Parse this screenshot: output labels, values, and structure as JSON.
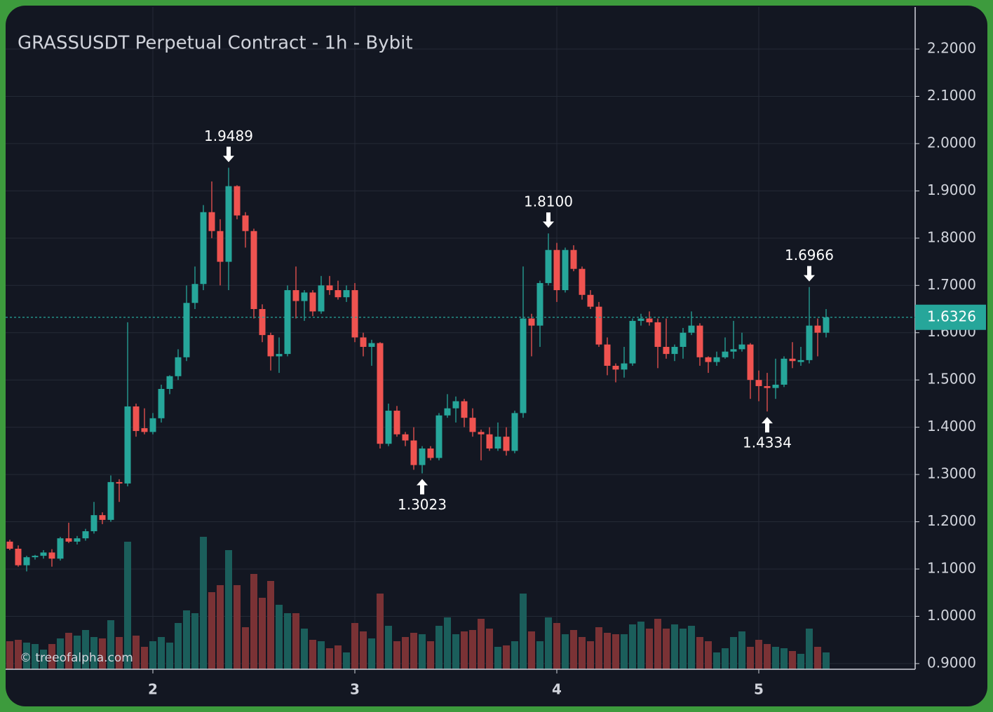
{
  "chart_data": {
    "type": "candlestick",
    "title": "GRASSUSDT Perpetual Contract - 1h - Bybit",
    "watermark": "© treeofalpha.com",
    "categories": [
      null,
      null,
      null,
      null,
      null,
      null,
      null,
      null,
      null,
      null,
      null,
      null,
      null,
      null,
      null,
      null,
      null,
      "2",
      null,
      null,
      null,
      null,
      null,
      null,
      null,
      null,
      null,
      null,
      null,
      null,
      null,
      null,
      null,
      null,
      null,
      null,
      null,
      null,
      null,
      null,
      null,
      "3",
      null,
      null,
      null,
      null,
      null,
      null,
      null,
      null,
      null,
      null,
      null,
      null,
      null,
      null,
      null,
      null,
      null,
      null,
      null,
      null,
      null,
      null,
      null,
      "4",
      null,
      null,
      null,
      null,
      null,
      null,
      null,
      null,
      null,
      null,
      null,
      null,
      null,
      null,
      null,
      null,
      null,
      null,
      null,
      null,
      null,
      null,
      null,
      "5",
      null,
      null,
      null,
      null,
      null,
      null,
      null,
      null
    ],
    "open": [
      1.158,
      1.143,
      1.108,
      1.125,
      1.128,
      1.135,
      1.122,
      1.165,
      1.158,
      1.165,
      1.18,
      1.214,
      1.204,
      1.284,
      1.281,
      1.444,
      1.398,
      1.39,
      1.419,
      1.481,
      1.508,
      1.548,
      1.663,
      1.703,
      1.855,
      1.815,
      1.75,
      1.91,
      1.848,
      1.815,
      1.65,
      1.595,
      1.55,
      1.555,
      1.69,
      1.667,
      1.685,
      1.645,
      1.7,
      1.69,
      1.675,
      1.69,
      1.59,
      1.57,
      1.578,
      1.365,
      1.435,
      1.385,
      1.372,
      1.32,
      1.355,
      1.335,
      1.425,
      1.44,
      1.455,
      1.42,
      1.39,
      1.385,
      1.355,
      1.38,
      1.35,
      1.43,
      1.63,
      1.615,
      1.705,
      1.775,
      1.69,
      1.775,
      1.735,
      1.68,
      1.655,
      1.575,
      1.53,
      1.522,
      1.535,
      1.625,
      1.63,
      1.622,
      1.57,
      1.555,
      1.57,
      1.6,
      1.615,
      1.548,
      1.538,
      1.548,
      1.56,
      1.565,
      1.575,
      1.5,
      1.487,
      1.483,
      1.49,
      1.545,
      1.538,
      1.542,
      1.615,
      1.6
    ],
    "high": [
      1.162,
      1.15,
      1.128,
      1.13,
      1.14,
      1.142,
      1.168,
      1.198,
      1.17,
      1.185,
      1.242,
      1.22,
      1.298,
      1.29,
      1.622,
      1.45,
      1.44,
      1.43,
      1.49,
      1.51,
      1.565,
      1.7,
      1.74,
      1.87,
      1.92,
      1.84,
      1.9489,
      1.912,
      1.855,
      1.82,
      1.66,
      1.6,
      1.59,
      1.7,
      1.74,
      1.69,
      1.69,
      1.72,
      1.72,
      1.71,
      1.7,
      1.705,
      1.6,
      1.585,
      1.58,
      1.45,
      1.445,
      1.39,
      1.4,
      1.36,
      1.36,
      1.43,
      1.47,
      1.465,
      1.46,
      1.44,
      1.395,
      1.4,
      1.41,
      1.4,
      1.435,
      1.74,
      1.64,
      1.71,
      1.81,
      1.79,
      1.78,
      1.785,
      1.74,
      1.69,
      1.665,
      1.59,
      1.535,
      1.57,
      1.63,
      1.64,
      1.645,
      1.63,
      1.63,
      1.575,
      1.61,
      1.645,
      1.62,
      1.55,
      1.56,
      1.59,
      1.625,
      1.6,
      1.578,
      1.52,
      1.515,
      1.545,
      1.55,
      1.58,
      1.57,
      1.6966,
      1.63,
      1.65
    ],
    "low": [
      1.14,
      1.105,
      1.095,
      1.12,
      1.122,
      1.105,
      1.118,
      1.155,
      1.152,
      1.16,
      1.175,
      1.195,
      1.2,
      1.242,
      1.275,
      1.38,
      1.385,
      1.385,
      1.41,
      1.47,
      1.5,
      1.54,
      1.65,
      1.69,
      1.8,
      1.7,
      1.69,
      1.84,
      1.78,
      1.63,
      1.58,
      1.52,
      1.515,
      1.55,
      1.63,
      1.625,
      1.635,
      1.64,
      1.68,
      1.67,
      1.665,
      1.58,
      1.55,
      1.53,
      1.355,
      1.36,
      1.38,
      1.36,
      1.31,
      1.3023,
      1.33,
      1.33,
      1.42,
      1.41,
      1.4,
      1.38,
      1.33,
      1.35,
      1.35,
      1.34,
      1.345,
      1.42,
      1.55,
      1.57,
      1.7,
      1.665,
      1.685,
      1.73,
      1.67,
      1.65,
      1.57,
      1.51,
      1.495,
      1.505,
      1.53,
      1.615,
      1.615,
      1.525,
      1.545,
      1.54,
      1.545,
      1.595,
      1.53,
      1.515,
      1.53,
      1.545,
      1.545,
      1.56,
      1.46,
      1.455,
      1.4334,
      1.46,
      1.485,
      1.525,
      1.53,
      1.535,
      1.55,
      1.59
    ],
    "close": [
      1.143,
      1.108,
      1.125,
      1.128,
      1.135,
      1.122,
      1.165,
      1.158,
      1.165,
      1.18,
      1.214,
      1.204,
      1.284,
      1.281,
      1.444,
      1.392,
      1.39,
      1.419,
      1.481,
      1.508,
      1.548,
      1.663,
      1.703,
      1.855,
      1.815,
      1.75,
      1.91,
      1.848,
      1.815,
      1.65,
      1.595,
      1.55,
      1.555,
      1.69,
      1.667,
      1.685,
      1.645,
      1.7,
      1.69,
      1.675,
      1.69,
      1.59,
      1.57,
      1.578,
      1.365,
      1.435,
      1.385,
      1.372,
      1.32,
      1.355,
      1.335,
      1.425,
      1.44,
      1.455,
      1.42,
      1.39,
      1.385,
      1.355,
      1.38,
      1.35,
      1.43,
      1.63,
      1.615,
      1.705,
      1.775,
      1.69,
      1.775,
      1.735,
      1.68,
      1.655,
      1.575,
      1.53,
      1.522,
      1.535,
      1.625,
      1.63,
      1.622,
      1.57,
      1.555,
      1.57,
      1.6,
      1.615,
      1.548,
      1.538,
      1.548,
      1.56,
      1.565,
      1.575,
      1.5,
      1.487,
      1.483,
      1.49,
      1.545,
      1.54,
      1.542,
      1.615,
      1.6,
      1.6326
    ],
    "volume": [
      40,
      42,
      38,
      36,
      28,
      36,
      44,
      52,
      48,
      56,
      46,
      44,
      70,
      46,
      182,
      48,
      32,
      40,
      46,
      38,
      66,
      84,
      80,
      189,
      110,
      120,
      170,
      120,
      60,
      136,
      102,
      126,
      92,
      80,
      80,
      58,
      42,
      40,
      30,
      34,
      24,
      66,
      54,
      44,
      108,
      62,
      40,
      46,
      52,
      50,
      40,
      62,
      74,
      50,
      54,
      56,
      72,
      58,
      32,
      34,
      40,
      108,
      54,
      40,
      74,
      66,
      50,
      56,
      46,
      40,
      60,
      52,
      50,
      50,
      64,
      68,
      58,
      72,
      58,
      64,
      58,
      62,
      46,
      40,
      24,
      30,
      46,
      54,
      32,
      42,
      36,
      32,
      30,
      26,
      22,
      58,
      32,
      24
    ],
    "up_color": "#26a69a",
    "down_color": "#ef5350",
    "up_volume_color": "#1b5e5b",
    "down_volume_color": "#7a3235",
    "last_price": 1.6326,
    "ylim": [
      0.888,
      2.289
    ],
    "yticks": [
      {
        "value": 0.9,
        "label": "0.9000"
      },
      {
        "value": 1.0,
        "label": "1.0000"
      },
      {
        "value": 1.1,
        "label": "1.1000"
      },
      {
        "value": 1.2,
        "label": "1.2000"
      },
      {
        "value": 1.3,
        "label": "1.3000"
      },
      {
        "value": 1.4,
        "label": "1.4000"
      },
      {
        "value": 1.5,
        "label": "1.5000"
      },
      {
        "value": 1.6,
        "label": "1.6000"
      },
      {
        "value": 1.7,
        "label": "1.7000"
      },
      {
        "value": 1.8,
        "label": "1.8000"
      },
      {
        "value": 1.9,
        "label": "1.9000"
      },
      {
        "value": 2.0,
        "label": "2.0000"
      },
      {
        "value": 2.1,
        "label": "2.1000"
      },
      {
        "value": 2.2,
        "label": "2.2000"
      }
    ],
    "annotations": [
      {
        "value": 1.9489,
        "label": "1.9489",
        "kind": "high"
      },
      {
        "value": 1.3023,
        "label": "1.3023",
        "kind": "low"
      },
      {
        "value": 1.81,
        "label": "1.8100",
        "kind": "high"
      },
      {
        "value": 1.4334,
        "label": "1.4334",
        "kind": "low"
      },
      {
        "value": 1.6966,
        "label": "1.6966",
        "kind": "high"
      }
    ],
    "grid": true
  }
}
